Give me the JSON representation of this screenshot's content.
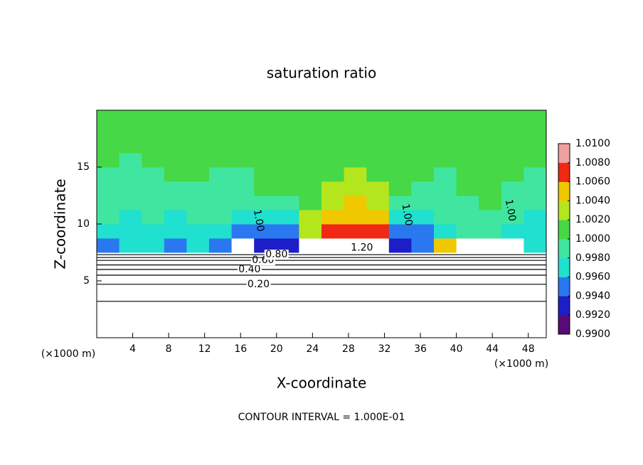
{
  "chart_data": {
    "type": "contour",
    "title": "saturation ratio",
    "xlabel": "X-coordinate",
    "ylabel": "Z-coordinate",
    "x_unit": "(×1000 m)",
    "footer": "CONTOUR INTERVAL = 1.000E-01",
    "xlim": [
      0,
      50
    ],
    "ylim": [
      0,
      20
    ],
    "xticks": [
      4,
      8,
      12,
      16,
      20,
      24,
      28,
      32,
      36,
      40,
      44,
      48
    ],
    "yticks": [
      5,
      10,
      15
    ],
    "field": {
      "x_edges": [
        0,
        2.5,
        5,
        7.5,
        10,
        12.5,
        15,
        17.5,
        20,
        22.5,
        25,
        27.5,
        30,
        32.5,
        35,
        37.5,
        40,
        42.5,
        45,
        47.5,
        50
      ],
      "z_edges": [
        7.5,
        8.75,
        10,
        11.25,
        12.5,
        13.75,
        15,
        16.25,
        17.5,
        18.75,
        20
      ],
      "values": [
        [
          0.995,
          0.997,
          0.997,
          0.995,
          0.997,
          0.995,
          1.2,
          0.993,
          0.993,
          1.2,
          1.2,
          1.2,
          1.2,
          0.993,
          0.995,
          1.005,
          1.2,
          1.2,
          1.2,
          0.997
        ],
        [
          0.997,
          0.997,
          0.997,
          0.997,
          0.997,
          0.997,
          0.995,
          0.995,
          0.995,
          1.003,
          1.007,
          1.007,
          1.007,
          0.995,
          0.995,
          0.997,
          0.999,
          0.999,
          0.997,
          0.997
        ],
        [
          0.999,
          0.997,
          0.999,
          0.997,
          0.999,
          0.999,
          0.997,
          0.997,
          0.997,
          1.003,
          1.005,
          1.005,
          1.005,
          0.997,
          0.997,
          0.999,
          0.999,
          0.999,
          0.999,
          0.997
        ],
        [
          0.999,
          0.999,
          0.999,
          0.999,
          0.999,
          0.999,
          0.999,
          0.999,
          0.999,
          1.001,
          1.003,
          1.005,
          1.003,
          0.999,
          0.999,
          0.999,
          0.999,
          1.001,
          0.999,
          0.999
        ],
        [
          0.999,
          0.999,
          0.999,
          0.999,
          0.999,
          0.999,
          0.999,
          1.001,
          1.001,
          1.001,
          1.003,
          1.003,
          1.003,
          1.001,
          0.999,
          0.999,
          1.001,
          1.001,
          0.999,
          0.999
        ],
        [
          0.999,
          0.999,
          0.999,
          1.001,
          1.001,
          0.999,
          0.999,
          1.001,
          1.001,
          1.001,
          1.001,
          1.003,
          1.001,
          1.001,
          1.001,
          0.999,
          1.001,
          1.001,
          1.001,
          0.999
        ],
        [
          1.001,
          0.999,
          1.001,
          1.001,
          1.001,
          1.001,
          1.001,
          1.001,
          1.001,
          1.001,
          1.001,
          1.001,
          1.001,
          1.001,
          1.001,
          1.001,
          1.001,
          1.001,
          1.001,
          1.001
        ],
        [
          1.001,
          1.001,
          1.001,
          1.001,
          1.001,
          1.001,
          1.001,
          1.001,
          1.001,
          1.001,
          1.001,
          1.001,
          1.001,
          1.001,
          1.001,
          1.001,
          1.001,
          1.001,
          1.001,
          1.001
        ],
        [
          1.001,
          1.001,
          1.001,
          1.001,
          1.001,
          1.001,
          1.001,
          1.001,
          1.001,
          1.001,
          1.001,
          1.001,
          1.001,
          1.001,
          1.001,
          1.001,
          1.001,
          1.001,
          1.001,
          1.001
        ],
        [
          1.001,
          1.001,
          1.001,
          1.001,
          1.001,
          1.001,
          1.001,
          1.001,
          1.001,
          1.001,
          1.001,
          1.001,
          1.001,
          1.001,
          1.001,
          1.001,
          1.001,
          1.001,
          1.001,
          1.001
        ]
      ]
    },
    "colorbar": {
      "ticks": [
        {
          "value": 0.99,
          "label": "0.9900"
        },
        {
          "value": 0.992,
          "label": "0.9920"
        },
        {
          "value": 0.994,
          "label": "0.9940"
        },
        {
          "value": 0.996,
          "label": "0.9960"
        },
        {
          "value": 0.998,
          "label": "0.9980"
        },
        {
          "value": 1.0,
          "label": "1.0000"
        },
        {
          "value": 1.002,
          "label": "1.0020"
        },
        {
          "value": 1.004,
          "label": "1.0040"
        },
        {
          "value": 1.006,
          "label": "1.0060"
        },
        {
          "value": 1.008,
          "label": "1.0080"
        },
        {
          "value": 1.01,
          "label": "1.0100"
        }
      ],
      "colors": [
        "#5a0a78",
        "#1e1ec8",
        "#2a78f0",
        "#20e0d0",
        "#40e6a0",
        "#46d846",
        "#b4e61e",
        "#f0c800",
        "#f02814",
        "#f0a0a0"
      ]
    },
    "contours": [
      {
        "value": 0.1,
        "z": 3.2
      },
      {
        "value": 0.2,
        "label": "0.20",
        "z": 4.7
      },
      {
        "value": 0.3,
        "z": 5.5
      },
      {
        "value": 0.4,
        "label": "0.40",
        "z": 6.0
      },
      {
        "value": 0.5,
        "z": 6.4
      },
      {
        "value": 0.6,
        "label": "0.60",
        "z": 6.8
      },
      {
        "value": 0.7,
        "z": 7.05
      },
      {
        "value": 0.8,
        "label": "0.80",
        "z": 7.3
      },
      {
        "value": 1.0,
        "label": "1.00"
      },
      {
        "value": 1.2,
        "label": "1.20"
      }
    ]
  }
}
